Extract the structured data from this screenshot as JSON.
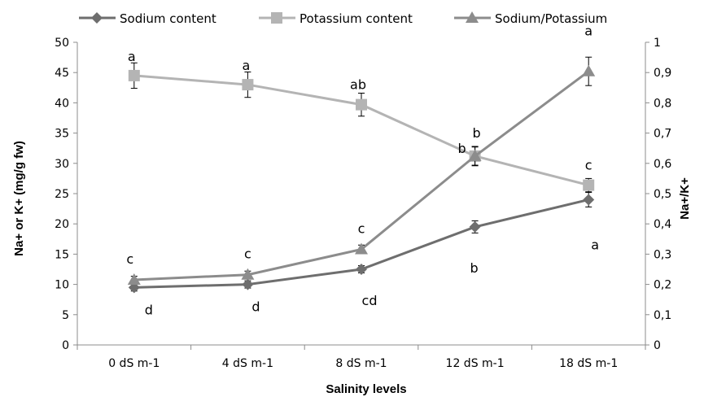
{
  "chart_data": {
    "type": "line",
    "categories": [
      "0  dS m-1",
      "4 dS m-1",
      "8 dS m-1",
      "12 dS m-1",
      "18 dS m-1"
    ],
    "xlabel": "Salinity levels",
    "ylabel": "Na+ or K+ (mg/g fw)",
    "y2label": "Na+/K+",
    "ylim": [
      0,
      50
    ],
    "y2lim": [
      0,
      1
    ],
    "yticks": [
      "0",
      "5",
      "10",
      "15",
      "20",
      "25",
      "30",
      "35",
      "40",
      "45",
      "50"
    ],
    "y2ticks": [
      "0",
      "0,1",
      "0,2",
      "0,3",
      "0,4",
      "0,5",
      "0,6",
      "0,7",
      "0,8",
      "0,9",
      "1"
    ],
    "legend_position": "top",
    "grid": false,
    "series": [
      {
        "name": "Sodium content",
        "axis": "left",
        "color": "#6e6e6e",
        "marker": "diamond",
        "values": [
          9.5,
          10.0,
          12.5,
          19.5,
          24.0
        ],
        "errors": [
          0.6,
          0.6,
          0.6,
          1.0,
          1.2
        ],
        "labels": [
          "d",
          "d",
          "cd",
          "b",
          "a"
        ]
      },
      {
        "name": "Potassium content",
        "axis": "left",
        "color": "#b4b4b4",
        "marker": "square",
        "values": [
          44.5,
          43.0,
          39.7,
          31.2,
          26.4
        ],
        "errors": [
          2.1,
          2.1,
          1.9,
          1.6,
          1.1
        ],
        "labels": [
          "a",
          "a",
          "ab",
          "b",
          "c"
        ]
      },
      {
        "name": "Sodium/Potassium",
        "axis": "right",
        "color": "#8c8c8c",
        "marker": "triangle",
        "values": [
          0.215,
          0.232,
          0.316,
          0.624,
          0.904
        ],
        "errors": [
          0.012,
          0.012,
          0.014,
          0.03,
          0.047
        ],
        "labels": [
          "c",
          "c",
          "c",
          "b",
          "a"
        ]
      }
    ]
  }
}
